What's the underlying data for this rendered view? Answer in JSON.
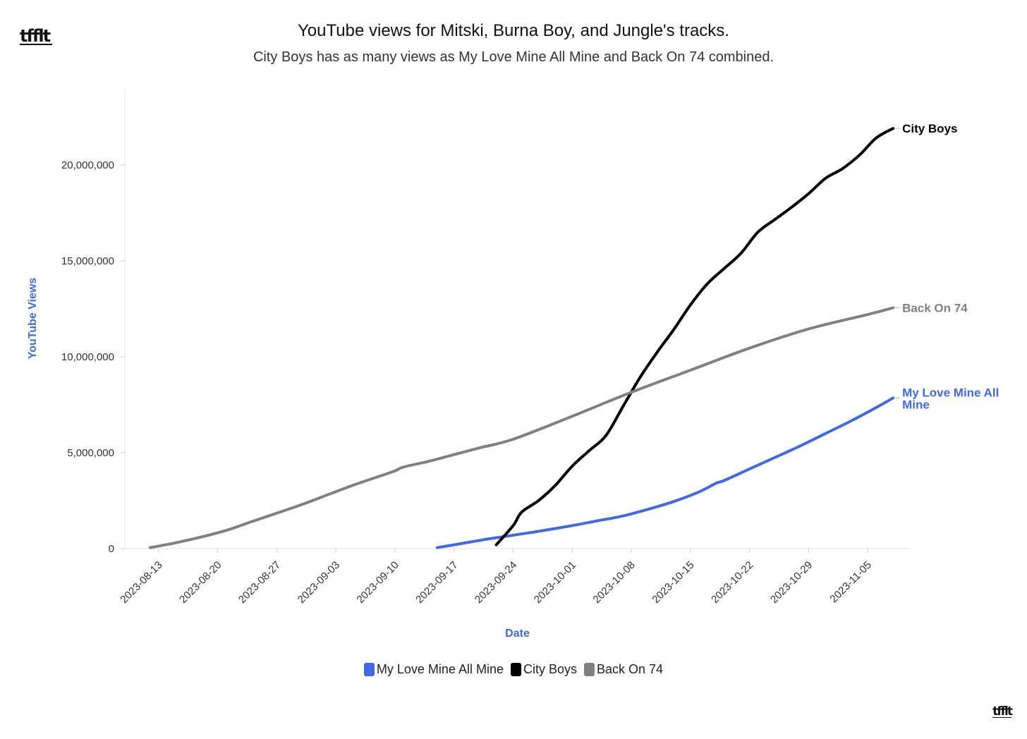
{
  "page": {
    "title": "YouTube views for Mitski, Burna Boy, and Jungle's tracks.",
    "subtitle": "City Boys has as many views as My Love Mine All Mine and Back On 74 combined.",
    "logo_text": "tfflt"
  },
  "chart_data": {
    "type": "line",
    "title": "YouTube views for Mitski, Burna Boy, and Jungle's tracks.",
    "subtitle": "City Boys has as many views as My Love Mine All Mine and Back On 74 combined.",
    "xlabel": "Date",
    "ylabel": "YouTube Views",
    "x_range": [
      "2023-08-09",
      "2023-11-10"
    ],
    "ylim": [
      0,
      24000000
    ],
    "x_ticks": [
      "2023-08-13",
      "2023-08-20",
      "2023-08-27",
      "2023-09-03",
      "2023-09-10",
      "2023-09-17",
      "2023-09-24",
      "2023-10-01",
      "2023-10-08",
      "2023-10-15",
      "2023-10-22",
      "2023-10-29",
      "2023-11-05"
    ],
    "y_ticks": [
      0,
      5000000,
      10000000,
      15000000,
      20000000
    ],
    "y_tick_labels": [
      "0",
      "5,000,000",
      "10,000,000",
      "15,000,000",
      "20,000,000"
    ],
    "grid": false,
    "legend_position": "bottom-center",
    "series": [
      {
        "name": "My Love Mine All Mine",
        "color": "#4169e1",
        "end_label": "My Love Mine All Mine",
        "points": [
          [
            "2023-09-15",
            50000
          ],
          [
            "2023-09-17",
            200000
          ],
          [
            "2023-09-19",
            350000
          ],
          [
            "2023-09-21",
            500000
          ],
          [
            "2023-09-24",
            700000
          ],
          [
            "2023-09-27",
            900000
          ],
          [
            "2023-10-01",
            1200000
          ],
          [
            "2023-10-04",
            1450000
          ],
          [
            "2023-10-07",
            1700000
          ],
          [
            "2023-10-10",
            2050000
          ],
          [
            "2023-10-13",
            2450000
          ],
          [
            "2023-10-16",
            2950000
          ],
          [
            "2023-10-18",
            3400000
          ],
          [
            "2023-10-19",
            3550000
          ],
          [
            "2023-10-22",
            4150000
          ],
          [
            "2023-10-25",
            4750000
          ],
          [
            "2023-10-28",
            5350000
          ],
          [
            "2023-10-31",
            6000000
          ],
          [
            "2023-11-03",
            6650000
          ],
          [
            "2023-11-06",
            7350000
          ],
          [
            "2023-11-08",
            7850000
          ]
        ]
      },
      {
        "name": "City Boys",
        "color": "#000000",
        "end_label": "City Boys",
        "points": [
          [
            "2023-09-22",
            200000
          ],
          [
            "2023-09-24",
            1200000
          ],
          [
            "2023-09-25",
            1900000
          ],
          [
            "2023-09-27",
            2500000
          ],
          [
            "2023-09-29",
            3300000
          ],
          [
            "2023-10-01",
            4300000
          ],
          [
            "2023-10-03",
            5100000
          ],
          [
            "2023-10-05",
            5900000
          ],
          [
            "2023-10-07",
            7400000
          ],
          [
            "2023-10-09",
            8900000
          ],
          [
            "2023-10-11",
            10200000
          ],
          [
            "2023-10-13",
            11400000
          ],
          [
            "2023-10-15",
            12700000
          ],
          [
            "2023-10-17",
            13800000
          ],
          [
            "2023-10-19",
            14600000
          ],
          [
            "2023-10-21",
            15400000
          ],
          [
            "2023-10-23",
            16500000
          ],
          [
            "2023-10-25",
            17150000
          ],
          [
            "2023-10-27",
            17800000
          ],
          [
            "2023-10-29",
            18500000
          ],
          [
            "2023-10-31",
            19300000
          ],
          [
            "2023-11-02",
            19800000
          ],
          [
            "2023-11-04",
            20500000
          ],
          [
            "2023-11-06",
            21400000
          ],
          [
            "2023-11-08",
            21900000
          ]
        ]
      },
      {
        "name": "Back On 74",
        "color": "#808080",
        "end_label": "Back On 74",
        "points": [
          [
            "2023-08-12",
            50000
          ],
          [
            "2023-08-15",
            300000
          ],
          [
            "2023-08-18",
            600000
          ],
          [
            "2023-08-21",
            950000
          ],
          [
            "2023-08-24",
            1400000
          ],
          [
            "2023-08-27",
            1850000
          ],
          [
            "2023-08-30",
            2300000
          ],
          [
            "2023-09-02",
            2800000
          ],
          [
            "2023-09-05",
            3300000
          ],
          [
            "2023-09-08",
            3750000
          ],
          [
            "2023-09-10",
            4050000
          ],
          [
            "2023-09-11",
            4250000
          ],
          [
            "2023-09-14",
            4550000
          ],
          [
            "2023-09-17",
            4900000
          ],
          [
            "2023-09-20",
            5250000
          ],
          [
            "2023-09-24",
            5700000
          ],
          [
            "2023-10-01",
            6900000
          ],
          [
            "2023-10-08",
            8150000
          ],
          [
            "2023-10-15",
            9300000
          ],
          [
            "2023-10-22",
            10450000
          ],
          [
            "2023-10-29",
            11450000
          ],
          [
            "2023-11-05",
            12200000
          ],
          [
            "2023-11-08",
            12550000
          ]
        ]
      }
    ]
  }
}
